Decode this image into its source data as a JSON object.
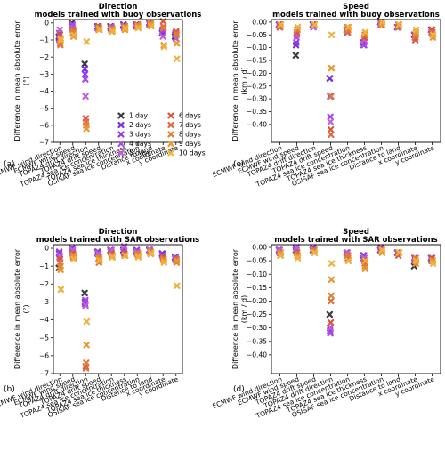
{
  "chart_data": [
    {
      "type": "scatter",
      "panel_letter": "(a)",
      "title_line1": "Direction",
      "title_line2": "models trained with buoy observations",
      "ylabel_line1": "Difference in mean absolute error",
      "ylabel_line2": "(°)",
      "ylim": [
        -7,
        0.2
      ],
      "yticks": [
        0,
        -1,
        -2,
        -3,
        -4,
        -5,
        -6,
        -7
      ],
      "categories": [
        "ECMWF wind direction",
        "ECMWF wind speed",
        "TOPAZ4 drift direction",
        "TOPAZ4 drift speed",
        "TOPAZ4 sea ice concentration",
        "TOPAZ4 sea ice thickness",
        "OSISAF sea ice concentration",
        "Distance to land",
        "x coordinate",
        "y coordinate"
      ],
      "series": [
        {
          "name": "1 day",
          "values": [
            -0.8,
            0,
            -2.4,
            -0.2,
            -0.2,
            -0.1,
            -0.1,
            0,
            -0.6,
            -0.8
          ]
        },
        {
          "name": "2 days",
          "values": [
            -0.9,
            -0.1,
            -2.7,
            -0.3,
            -0.3,
            -0.1,
            -0.1,
            0,
            -0.6,
            -0.7
          ]
        },
        {
          "name": "3 days",
          "values": [
            -0.6,
            -0.2,
            -3.0,
            -0.2,
            -0.3,
            -0.2,
            -0.2,
            -0.1,
            -0.5,
            -0.6
          ]
        },
        {
          "name": "4 days",
          "values": [
            -1.0,
            -0.1,
            -3.3,
            -0.2,
            -0.2,
            -0.2,
            -0.1,
            0,
            -0.4,
            -0.9
          ]
        },
        {
          "name": "5 days",
          "values": [
            -0.4,
            -0.3,
            -4.3,
            -0.3,
            -0.4,
            -0.3,
            -0.2,
            -0.1,
            -0.8,
            -0.9
          ]
        },
        {
          "name": "6 days",
          "values": [
            -0.7,
            -0.4,
            -5.6,
            -0.2,
            -0.3,
            -0.2,
            -0.2,
            -0.1,
            0.1,
            -0.5
          ]
        },
        {
          "name": "7 days",
          "values": [
            -1.2,
            -0.6,
            -5.8,
            -0.4,
            -0.5,
            -0.3,
            -0.1,
            0,
            -0.2,
            -0.6
          ]
        },
        {
          "name": "8 days",
          "values": [
            -1.3,
            -0.5,
            -6.0,
            -0.3,
            -0.3,
            -0.2,
            -0.1,
            0,
            -0.3,
            -0.7
          ]
        },
        {
          "name": "9 days",
          "values": [
            -0.9,
            -0.8,
            -6.2,
            -0.3,
            -0.4,
            -0.4,
            -0.2,
            -0.1,
            -1.3,
            -1.2
          ]
        },
        {
          "name": "10 days",
          "values": [
            -1.0,
            -0.7,
            -1.1,
            -0.4,
            -0.5,
            -0.3,
            -0.3,
            -0.2,
            -1.4,
            -2.1
          ]
        }
      ],
      "legend": {
        "columns": 2,
        "position": "lower-right"
      }
    },
    {
      "type": "scatter",
      "panel_letter": "(c)",
      "title_line1": "Speed",
      "title_line2": "models trained with buoy observations",
      "ylabel_line1": "Difference in mean absolute error",
      "ylabel_line2": "(km / d)",
      "ylim": [
        -0.47,
        0.01
      ],
      "yticks": [
        0,
        -0.05,
        -0.1,
        -0.15,
        -0.2,
        -0.25,
        -0.3,
        -0.35,
        -0.4
      ],
      "ytick_labels": [
        "0.00",
        "−0.05",
        "−0.10",
        "−0.15",
        "−0.20",
        "−0.25",
        "−0.30",
        "−0.35",
        "−0.40"
      ],
      "categories": [
        "ECMWF wind direction",
        "ECMWF wind speed",
        "TOPAZ4 drift direction",
        "TOPAZ4 drift speed",
        "TOPAZ4 sea ice concentration",
        "TOPAZ4 sea ice thickness",
        "OSISAF sea ice concentration",
        "Distance to land",
        "x coordinate",
        "y coordinate"
      ],
      "series": [
        {
          "name": "1 day",
          "values": [
            -0.01,
            -0.13,
            -0.01,
            -0.22,
            -0.03,
            -0.08,
            0,
            -0.02,
            -0.05,
            -0.03
          ]
        },
        {
          "name": "2 days",
          "values": [
            -0.01,
            -0.09,
            -0.01,
            -0.22,
            -0.03,
            -0.09,
            0,
            -0.02,
            -0.05,
            -0.03
          ]
        },
        {
          "name": "3 days",
          "values": [
            -0.01,
            -0.08,
            -0.01,
            -0.29,
            -0.03,
            -0.08,
            -0.01,
            -0.02,
            -0.05,
            -0.04
          ]
        },
        {
          "name": "4 days",
          "values": [
            -0.02,
            -0.06,
            -0.02,
            -0.37,
            -0.04,
            -0.09,
            -0.01,
            -0.02,
            -0.06,
            -0.04
          ]
        },
        {
          "name": "5 days",
          "values": [
            -0.01,
            -0.05,
            -0.02,
            -0.39,
            -0.03,
            -0.07,
            0,
            -0.02,
            -0.06,
            -0.03
          ]
        },
        {
          "name": "6 days",
          "values": [
            -0.02,
            -0.04,
            -0.01,
            -0.42,
            -0.02,
            -0.06,
            -0.01,
            -0.01,
            -0.07,
            -0.03
          ]
        },
        {
          "name": "7 days",
          "values": [
            -0.02,
            -0.03,
            -0.01,
            -0.44,
            -0.04,
            -0.05,
            -0.01,
            -0.02,
            -0.06,
            -0.04
          ]
        },
        {
          "name": "8 days",
          "values": [
            -0.01,
            -0.03,
            -0.01,
            -0.29,
            -0.03,
            -0.05,
            0,
            -0.01,
            -0.05,
            -0.05
          ]
        },
        {
          "name": "9 days",
          "values": [
            -0.01,
            -0.02,
            -0.01,
            -0.18,
            -0.02,
            -0.04,
            -0.01,
            -0.01,
            -0.04,
            -0.06
          ]
        },
        {
          "name": "10 days",
          "values": [
            -0.01,
            -0.02,
            -0.01,
            -0.05,
            -0.02,
            -0.04,
            0,
            -0.01,
            -0.03,
            -0.05
          ]
        }
      ]
    },
    {
      "type": "scatter",
      "panel_letter": "(b)",
      "title_line1": "Direction",
      "title_line2": "models trained with SAR observations",
      "ylabel_line1": "Difference in mean absolute error",
      "ylabel_line2": "(°)",
      "ylim": [
        -7,
        0.2
      ],
      "yticks": [
        0,
        -1,
        -2,
        -3,
        -4,
        -5,
        -6,
        -7
      ],
      "categories": [
        "ECMWF wind direction",
        "ECMWF wind speed",
        "TOPAZ4 drift direction",
        "TOPAZ4 drift speed",
        "TOPAZ4 sea ice concentration",
        "TOPAZ4 sea ice thickness",
        "OSISAF sea ice concentration",
        "Distance to land",
        "x coordinate",
        "y coordinate"
      ],
      "series": [
        {
          "name": "1 day",
          "values": [
            -1.1,
            0,
            -2.5,
            -0.2,
            -0.1,
            -0.1,
            -0.2,
            -0.1,
            -0.3,
            -0.5
          ]
        },
        {
          "name": "2 days",
          "values": [
            -0.3,
            -0.1,
            -3.0,
            -0.3,
            -0.2,
            -0.2,
            -0.2,
            -0.1,
            -0.3,
            -0.6
          ]
        },
        {
          "name": "3 days",
          "values": [
            -0.2,
            0,
            -3.1,
            -0.2,
            -0.1,
            -0.1,
            -0.1,
            -0.1,
            -0.4,
            -0.6
          ]
        },
        {
          "name": "4 days",
          "values": [
            -0.5,
            -0.2,
            -2.9,
            -0.3,
            -0.2,
            -0.2,
            -0.2,
            -0.1,
            -0.4,
            -0.5
          ]
        },
        {
          "name": "5 days",
          "values": [
            -0.4,
            -0.1,
            -3.2,
            -0.3,
            -0.1,
            0.1,
            -0.2,
            -0.1,
            -0.5,
            -0.6
          ]
        },
        {
          "name": "6 days",
          "values": [
            -0.6,
            -0.3,
            -6.6,
            -0.6,
            -0.3,
            -0.3,
            -0.3,
            -0.2,
            -0.5,
            -0.7
          ]
        },
        {
          "name": "7 days",
          "values": [
            -0.8,
            -0.4,
            -6.7,
            -0.8,
            -0.4,
            -0.4,
            -0.3,
            -0.3,
            -0.6,
            -0.6
          ]
        },
        {
          "name": "8 days",
          "values": [
            -1.0,
            -0.5,
            -6.4,
            -0.5,
            -0.5,
            -0.4,
            -0.3,
            -0.3,
            -0.6,
            -0.8
          ]
        },
        {
          "name": "9 days",
          "values": [
            -1.2,
            -0.4,
            -5.4,
            -0.6,
            -0.4,
            -0.4,
            -0.4,
            -0.2,
            -0.7,
            -0.7
          ]
        },
        {
          "name": "10 days",
          "values": [
            -2.3,
            -0.6,
            -4.1,
            -0.7,
            -0.5,
            -0.4,
            -0.5,
            -0.3,
            -0.8,
            -2.1
          ]
        }
      ]
    },
    {
      "type": "scatter",
      "panel_letter": "(d)",
      "title_line1": "Speed",
      "title_line2": "models trained with SAR observations",
      "ylabel_line1": "Difference in mean absolute error",
      "ylabel_line2": "(km / d)",
      "ylim": [
        -0.47,
        0.01
      ],
      "yticks": [
        0,
        -0.05,
        -0.1,
        -0.15,
        -0.2,
        -0.25,
        -0.3,
        -0.35,
        -0.4
      ],
      "ytick_labels": [
        "0.00",
        "−0.05",
        "−0.10",
        "−0.15",
        "−0.20",
        "−0.25",
        "−0.30",
        "−0.35",
        "−0.40"
      ],
      "categories": [
        "ECMWF wind direction",
        "ECMWF wind speed",
        "TOPAZ4 drift speed",
        "TOPAZ4 drift direction",
        "TOPAZ4 sea ice concentration",
        "TOPAZ4 sea ice thickness",
        "OSISAF sea ice concentration",
        "Distance to land",
        "x coordinate",
        "y coordinate"
      ],
      "series": [
        {
          "name": "1 day",
          "values": [
            -0.01,
            -0.01,
            -0.01,
            -0.25,
            -0.02,
            -0.03,
            -0.01,
            -0.02,
            -0.07,
            -0.04
          ]
        },
        {
          "name": "2 days",
          "values": [
            -0.01,
            0,
            -0.01,
            -0.3,
            -0.02,
            -0.04,
            -0.01,
            -0.02,
            -0.04,
            -0.04
          ]
        },
        {
          "name": "3 days",
          "values": [
            -0.01,
            -0.01,
            0,
            -0.31,
            -0.02,
            -0.03,
            0,
            -0.02,
            -0.04,
            -0.05
          ]
        },
        {
          "name": "4 days",
          "values": [
            -0.02,
            -0.01,
            -0.01,
            -0.32,
            -0.03,
            -0.04,
            -0.01,
            -0.02,
            -0.05,
            -0.04
          ]
        },
        {
          "name": "5 days",
          "values": [
            -0.01,
            0,
            -0.01,
            -0.3,
            -0.02,
            -0.04,
            -0.01,
            -0.02,
            -0.05,
            -0.05
          ]
        },
        {
          "name": "6 days",
          "values": [
            -0.02,
            -0.02,
            -0.01,
            -0.28,
            -0.03,
            -0.05,
            -0.01,
            -0.03,
            -0.05,
            -0.04
          ]
        },
        {
          "name": "7 days",
          "values": [
            -0.02,
            -0.02,
            -0.01,
            -0.2,
            -0.04,
            -0.06,
            -0.01,
            -0.02,
            -0.04,
            -0.05
          ]
        },
        {
          "name": "8 days",
          "values": [
            -0.03,
            -0.03,
            -0.01,
            -0.18,
            -0.03,
            -0.07,
            -0.01,
            -0.02,
            -0.04,
            -0.05
          ]
        },
        {
          "name": "9 days",
          "values": [
            -0.02,
            -0.03,
            -0.02,
            -0.12,
            -0.05,
            -0.08,
            -0.02,
            -0.02,
            -0.06,
            -0.05
          ]
        },
        {
          "name": "10 days",
          "values": [
            -0.03,
            -0.04,
            -0.02,
            -0.06,
            -0.05,
            -0.05,
            -0.01,
            -0.02,
            -0.05,
            -0.06
          ]
        }
      ]
    }
  ],
  "series_colors": [
    "#3a3a3a",
    "#7b2ee6",
    "#9437ea",
    "#a84be6",
    "#bf5fd9",
    "#d5583c",
    "#e06a3e",
    "#e07f34",
    "#e99632",
    "#f0b23c"
  ]
}
